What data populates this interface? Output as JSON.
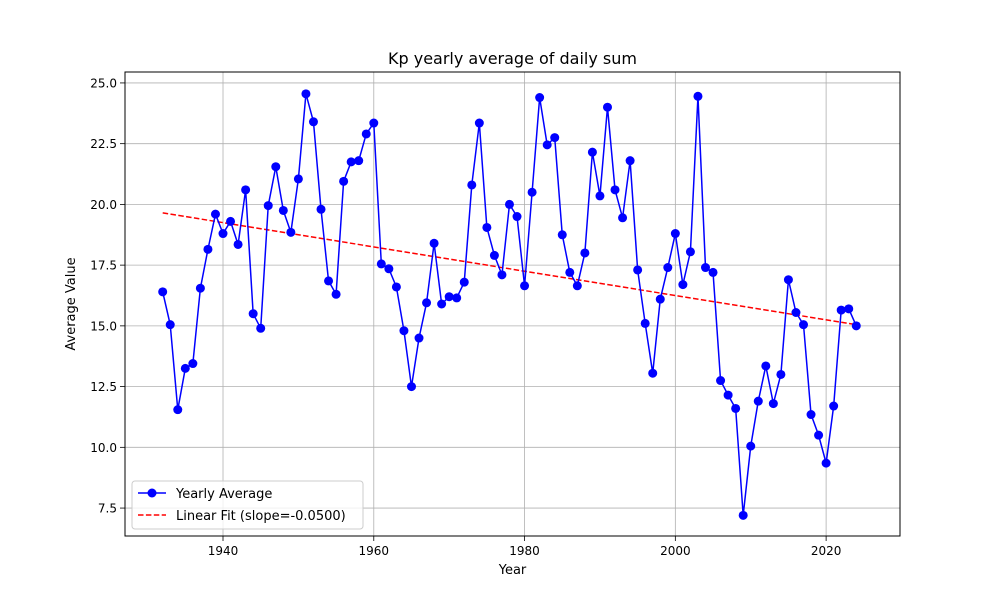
{
  "chart_data": {
    "type": "line",
    "title": "Kp yearly average of daily sum",
    "xlabel": "Year",
    "ylabel": "Average Value",
    "xlim": [
      1927,
      2029.8
    ],
    "ylim": [
      6.35,
      25.45
    ],
    "xticks": [
      1940,
      1960,
      1980,
      2000,
      2020
    ],
    "yticks": [
      7.5,
      10.0,
      12.5,
      15.0,
      17.5,
      20.0,
      22.5,
      25.0
    ],
    "ytick_labels": [
      "7.5",
      "10.0",
      "12.5",
      "15.0",
      "17.5",
      "20.0",
      "22.5",
      "25.0"
    ],
    "grid": true,
    "legend_position": "lower-left",
    "series": [
      {
        "name": "Yearly Average",
        "style": "line-with-markers",
        "color": "#0000ff",
        "x": [
          1932,
          1933,
          1934,
          1935,
          1936,
          1937,
          1938,
          1939,
          1940,
          1941,
          1942,
          1943,
          1944,
          1945,
          1946,
          1947,
          1948,
          1949,
          1950,
          1951,
          1952,
          1953,
          1954,
          1955,
          1956,
          1957,
          1958,
          1959,
          1960,
          1961,
          1962,
          1963,
          1964,
          1965,
          1966,
          1967,
          1968,
          1969,
          1970,
          1971,
          1972,
          1973,
          1974,
          1975,
          1976,
          1977,
          1978,
          1979,
          1980,
          1981,
          1982,
          1983,
          1984,
          1985,
          1986,
          1987,
          1988,
          1989,
          1990,
          1991,
          1992,
          1993,
          1994,
          1995,
          1996,
          1997,
          1998,
          1999,
          2000,
          2001,
          2002,
          2003,
          2004,
          2005,
          2006,
          2007,
          2008,
          2009,
          2010,
          2011,
          2012,
          2013,
          2014,
          2015,
          2016,
          2017,
          2018,
          2019,
          2020,
          2021,
          2022,
          2023,
          2024
        ],
        "y": [
          16.4,
          15.05,
          11.55,
          13.25,
          13.45,
          16.55,
          18.15,
          19.6,
          18.8,
          19.3,
          18.35,
          20.6,
          15.5,
          14.9,
          19.95,
          21.55,
          19.75,
          18.85,
          21.05,
          24.55,
          23.4,
          19.8,
          16.85,
          16.3,
          20.95,
          21.75,
          21.8,
          22.9,
          23.35,
          17.55,
          17.35,
          16.6,
          14.8,
          12.5,
          14.5,
          15.95,
          18.4,
          15.9,
          16.2,
          16.15,
          16.8,
          20.8,
          23.35,
          19.05,
          17.9,
          17.1,
          20.0,
          19.5,
          16.65,
          20.5,
          24.4,
          22.45,
          22.75,
          18.75,
          17.2,
          16.65,
          18.0,
          22.15,
          20.35,
          24.0,
          20.6,
          19.45,
          21.8,
          17.3,
          15.1,
          13.05,
          16.1,
          17.4,
          18.8,
          16.7,
          18.05,
          24.45,
          17.4,
          17.2,
          12.75,
          12.15,
          11.6,
          7.2,
          10.05,
          11.9,
          13.35,
          11.8,
          13.0,
          16.9,
          15.55,
          15.05,
          11.35,
          10.5,
          9.35,
          11.7,
          15.65,
          15.7,
          15.0
        ]
      },
      {
        "name": "Linear Fit (slope=-0.0500)",
        "style": "dashed",
        "color": "#ff0000",
        "x": [
          1932,
          2024
        ],
        "y": [
          19.65,
          15.05
        ]
      }
    ]
  }
}
